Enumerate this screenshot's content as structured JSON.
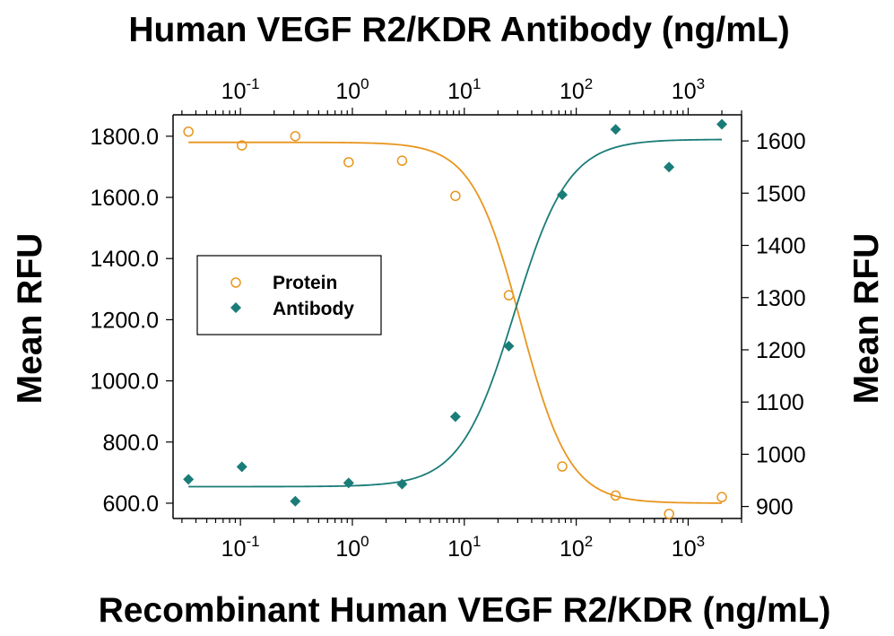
{
  "chart_data": {
    "type": "scatter",
    "title": "Human VEGF R2/KDR Antibody (ng/mL)",
    "xlabel": "Recombinant Human VEGF R2/KDR (ng/mL)",
    "ylabel_left": "Mean RFU",
    "ylabel_right": "Mean RFU",
    "x_scale": "log",
    "xlim": [
      0.025,
      3000
    ],
    "x_tick_values": [
      0.1,
      1,
      10,
      100,
      1000
    ],
    "x_tick_bases": [
      "10",
      "10",
      "10",
      "10",
      "10"
    ],
    "x_tick_exponents": [
      "-1",
      "0",
      "1",
      "2",
      "3"
    ],
    "y_left_lim": [
      550,
      1870
    ],
    "y_left_ticks": [
      600,
      800,
      1000,
      1200,
      1400,
      1600,
      1800
    ],
    "y_left_tick_labels": [
      "600.0",
      "800.0",
      "1000.0",
      "1200.0",
      "1400.0",
      "1600.0",
      "1800.0"
    ],
    "y_right_lim": [
      877,
      1650
    ],
    "y_right_ticks": [
      900,
      1000,
      1100,
      1200,
      1300,
      1400,
      1500,
      1600
    ],
    "y_right_tick_labels": [
      "900",
      "1000",
      "1100",
      "1200",
      "1300",
      "1400",
      "1500",
      "1600"
    ],
    "grid": false,
    "legend_position": "left",
    "series": [
      {
        "name": "Protein",
        "axis": "left",
        "marker": "open-circle",
        "color": "#E8961E",
        "x": [
          0.0343,
          0.103,
          0.309,
          0.926,
          2.78,
          8.33,
          25,
          75,
          225,
          675,
          2000
        ],
        "y": [
          1815,
          1770,
          1800,
          1715,
          1720,
          1605,
          1280,
          720,
          625,
          565,
          620
        ],
        "fit": {
          "top": 1780,
          "bottom": 600,
          "ec50": 32,
          "hill": 2.0
        }
      },
      {
        "name": "Antibody",
        "axis": "right",
        "marker": "filled-diamond",
        "color": "#1A7C78",
        "x": [
          0.0343,
          0.103,
          0.309,
          0.926,
          2.78,
          8.33,
          25,
          75,
          225,
          675,
          2000
        ],
        "y": [
          952,
          976,
          910,
          945,
          943,
          1072,
          1207,
          1497,
          1622,
          1550,
          1632
        ],
        "fit": {
          "top": 1603,
          "bottom": 938,
          "ec50": 28,
          "hill": 1.8
        }
      }
    ]
  },
  "colors": {
    "protein": "#E8961E",
    "antibody": "#1A7C78",
    "axis": "#000000"
  }
}
